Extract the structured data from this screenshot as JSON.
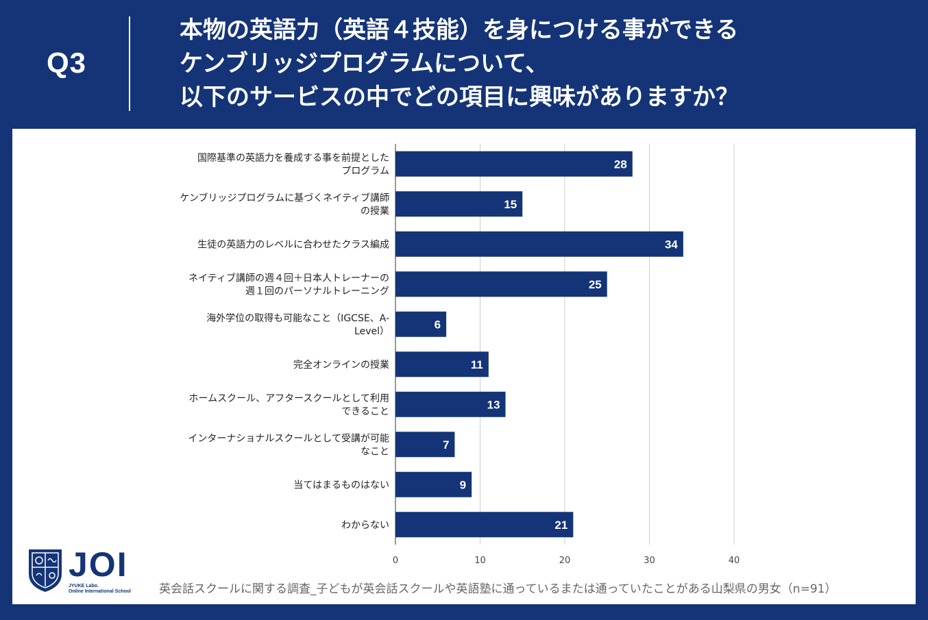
{
  "header": {
    "q_label": "Q3",
    "question_lines": [
      "本物の英語力（英語４技能）を身につける事ができる",
      "ケンブリッジプログラムについて、",
      "以下のサービスの中でどの項目に興味がありますか？"
    ]
  },
  "colors": {
    "bar": "#143477",
    "background": "#143477",
    "grid": "#cccccc"
  },
  "logo": {
    "name": "JOI",
    "sub1": "JYUKE Labo.",
    "sub2": "Online International School"
  },
  "footnote": "英会話スクールに関する調査_子どもが英会話スクールや英語塾に通っているまたは通っていたことがある山梨県の男女（n=91）",
  "chart_data": {
    "type": "bar",
    "orientation": "horizontal",
    "categories": [
      [
        "国際基準の英語力を養成する事を前提とした",
        "プログラム"
      ],
      [
        "ケンブリッジプログラムに基づくネイティブ講師",
        "の授業"
      ],
      [
        "生徒の英語力のレベルに合わせたクラス編成"
      ],
      [
        "ネイティブ講師の週４回＋日本人トレーナーの",
        "週１回のパーソナルトレーニング"
      ],
      [
        "海外学位の取得も可能なこと（IGCSE、A-",
        "Level）"
      ],
      [
        "完全オンラインの授業"
      ],
      [
        "ホームスクール、アフタースクールとして利用",
        "できること"
      ],
      [
        "インターナショナルスクールとして受講が可能",
        "なこと"
      ],
      [
        "当てはまるものはない"
      ],
      [
        "わからない"
      ]
    ],
    "values": [
      28,
      15,
      34,
      25,
      6,
      11,
      13,
      7,
      9,
      21
    ],
    "xlim": [
      0,
      40
    ],
    "xticks": [
      0,
      10,
      20,
      30,
      40
    ],
    "grid": true,
    "data_labels": true
  }
}
